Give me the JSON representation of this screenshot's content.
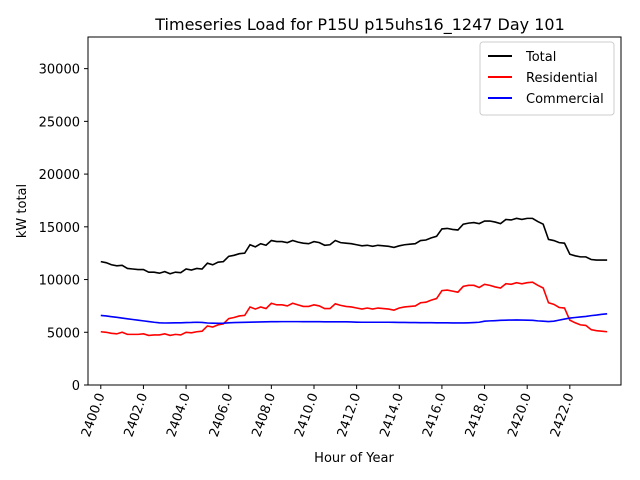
{
  "chart_data": {
    "type": "line",
    "title": "Timeseries Load for P15U p15uhs16_1247  Day 101",
    "xlabel": "Hour of Year",
    "ylabel": "kW total",
    "xlim": [
      2399.4,
      2424.4
    ],
    "ylim": [
      0,
      33000
    ],
    "xticks": [
      2400,
      2402,
      2404,
      2406,
      2408,
      2410,
      2412,
      2414,
      2416,
      2418,
      2420,
      2422
    ],
    "xtick_labels": [
      "2400.0",
      "2402.0",
      "2404.0",
      "2406.0",
      "2408.0",
      "2410.0",
      "2412.0",
      "2414.0",
      "2416.0",
      "2418.0",
      "2420.0",
      "2422.0"
    ],
    "yticks": [
      0,
      5000,
      10000,
      15000,
      20000,
      25000,
      30000
    ],
    "ytick_labels": [
      "0",
      "5000",
      "10000",
      "15000",
      "20000",
      "25000",
      "30000"
    ],
    "legend_position": "top-right",
    "x_start": 2400,
    "x_step": 0.25,
    "series": [
      {
        "name": "Total",
        "color": "#000000",
        "values": [
          11700,
          11600,
          11400,
          11300,
          11350,
          11050,
          11000,
          10950,
          10950,
          10700,
          10700,
          10600,
          10750,
          10550,
          10700,
          10650,
          11000,
          10900,
          11050,
          11000,
          11550,
          11400,
          11650,
          11700,
          12200,
          12300,
          12450,
          12500,
          13300,
          13100,
          13400,
          13250,
          13700,
          13600,
          13600,
          13500,
          13700,
          13550,
          13450,
          13400,
          13600,
          13500,
          13250,
          13300,
          13700,
          13500,
          13450,
          13400,
          13300,
          13200,
          13250,
          13150,
          13250,
          13200,
          13150,
          13050,
          13200,
          13300,
          13350,
          13400,
          13700,
          13750,
          13950,
          14100,
          14800,
          14850,
          14750,
          14700,
          15250,
          15350,
          15400,
          15300,
          15550,
          15550,
          15450,
          15300,
          15700,
          15650,
          15800,
          15700,
          15800,
          15800,
          15500,
          15250,
          13800,
          13700,
          13500,
          13450,
          12400,
          12250,
          12150,
          12150,
          11900,
          11850,
          11850,
          11850
        ]
      },
      {
        "name": "Residential",
        "color": "#ff0000",
        "values": [
          5050,
          5000,
          4900,
          4850,
          5000,
          4800,
          4800,
          4800,
          4850,
          4700,
          4750,
          4750,
          4850,
          4700,
          4800,
          4750,
          5000,
          4950,
          5050,
          5100,
          5600,
          5500,
          5700,
          5800,
          6300,
          6400,
          6550,
          6600,
          7400,
          7200,
          7400,
          7250,
          7750,
          7600,
          7600,
          7500,
          7750,
          7600,
          7450,
          7450,
          7600,
          7500,
          7250,
          7250,
          7700,
          7550,
          7450,
          7400,
          7300,
          7200,
          7300,
          7200,
          7300,
          7250,
          7200,
          7100,
          7300,
          7400,
          7450,
          7500,
          7800,
          7850,
          8050,
          8200,
          8950,
          9000,
          8900,
          8800,
          9350,
          9450,
          9450,
          9250,
          9550,
          9450,
          9300,
          9200,
          9600,
          9550,
          9700,
          9600,
          9700,
          9750,
          9450,
          9200,
          7800,
          7650,
          7350,
          7300,
          6150,
          5900,
          5700,
          5650,
          5250,
          5150,
          5100,
          5050
        ]
      },
      {
        "name": "Commercial",
        "color": "#0000ff",
        "values": [
          6600,
          6550,
          6480,
          6420,
          6350,
          6280,
          6210,
          6150,
          6080,
          6020,
          5950,
          5900,
          5880,
          5890,
          5900,
          5900,
          5920,
          5930,
          5950,
          5930,
          5880,
          5860,
          5850,
          5860,
          5900,
          5920,
          5930,
          5940,
          5960,
          5970,
          5980,
          5990,
          6000,
          6000,
          6010,
          6010,
          6010,
          6010,
          6000,
          6000,
          6000,
          6000,
          5990,
          5990,
          5990,
          5990,
          5990,
          5980,
          5960,
          5950,
          5950,
          5950,
          5950,
          5950,
          5950,
          5940,
          5930,
          5930,
          5920,
          5920,
          5910,
          5910,
          5910,
          5900,
          5900,
          5900,
          5890,
          5890,
          5890,
          5900,
          5920,
          5950,
          6050,
          6080,
          6100,
          6130,
          6150,
          6160,
          6170,
          6160,
          6150,
          6130,
          6080,
          6050,
          6020,
          6050,
          6150,
          6250,
          6350,
          6400,
          6450,
          6500,
          6580,
          6630,
          6700,
          6750
        ]
      }
    ]
  }
}
